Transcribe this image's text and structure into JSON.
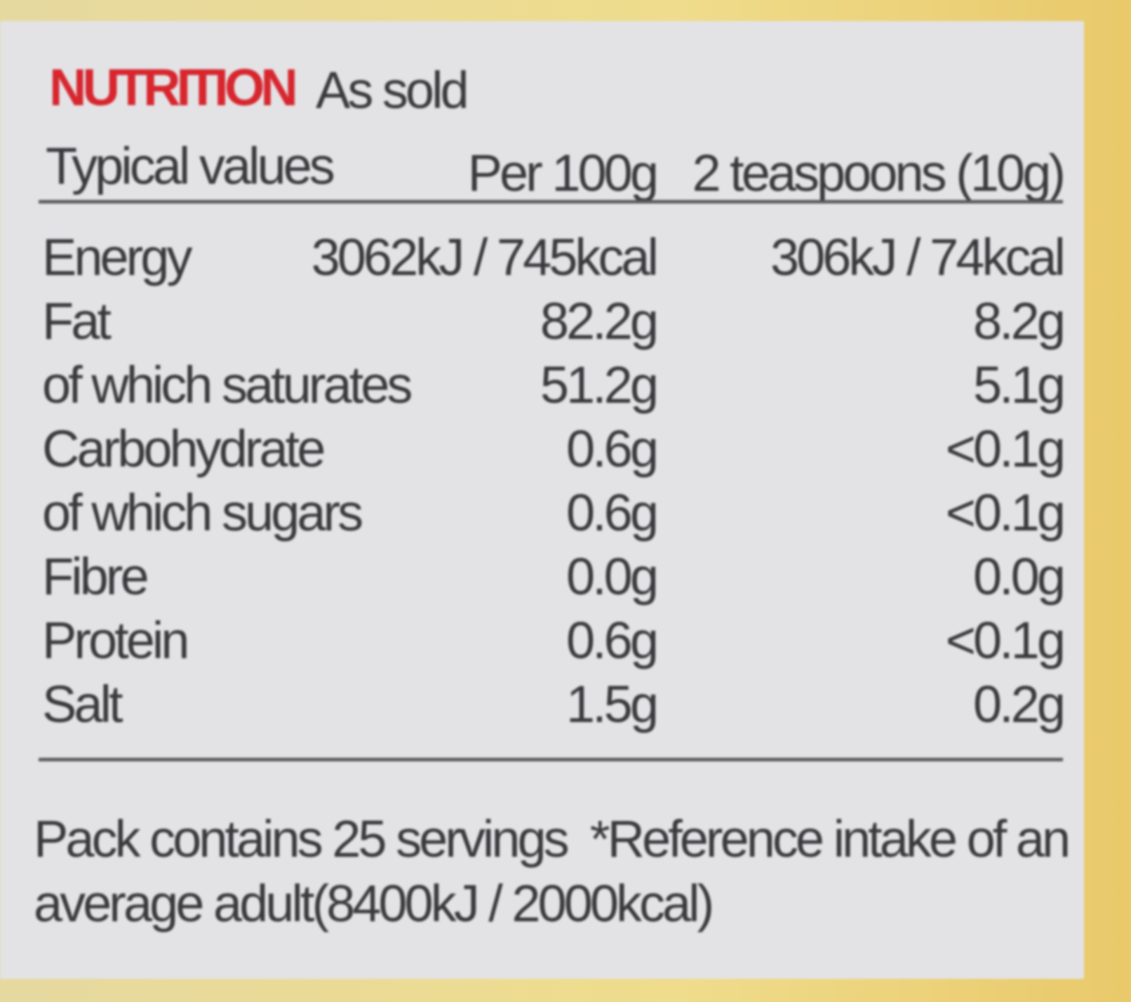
{
  "header": {
    "title": "NUTRITION",
    "subtitle": "As sold"
  },
  "table": {
    "columns": [
      "Typical values",
      "Per 100g",
      "2 teaspoons (10g)"
    ],
    "rows": [
      [
        "Energy",
        "3062kJ / 745kcal",
        "306kJ / 74kcal"
      ],
      [
        "Fat",
        "82.2g",
        "8.2g"
      ],
      [
        "of which saturates",
        "51.2g",
        "5.1g"
      ],
      [
        "Carbohydrate",
        "0.6g",
        "<0.1g"
      ],
      [
        "of which sugars",
        "0.6g",
        "<0.1g"
      ],
      [
        "Fibre",
        "0.0g",
        "0.0g"
      ],
      [
        "Protein",
        "0.6g",
        "<0.1g"
      ],
      [
        "Salt",
        "1.5g",
        "0.2g"
      ]
    ]
  },
  "footer": {
    "servings": "Pack contains 25 servings",
    "reference": "*Reference intake of an average adult(8400kJ / 2000kcal)"
  }
}
